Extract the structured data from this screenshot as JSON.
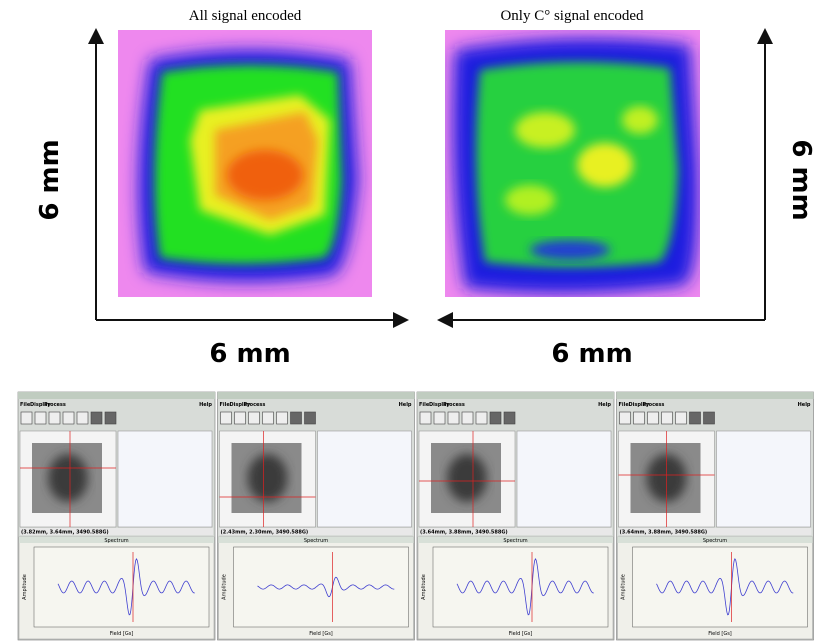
{
  "maps": [
    {
      "title": "All signal encoded",
      "x_label": "6 mm",
      "y_label": "6 mm"
    },
    {
      "title": "Only C° signal encoded",
      "x_label": "6 mm",
      "y_label": "6 mm"
    }
  ],
  "menu": [
    "File",
    "Display",
    "Process",
    "Help"
  ],
  "spectrum": {
    "title": "Spectrum",
    "y_label": "Amplitude",
    "x_label": "Field [Gs]"
  },
  "windows": [
    {
      "status": "(3.82mm, 3.64mm, 3490.588G)"
    },
    {
      "status": "(2.43mm, 2.30mm, 3490.588G)"
    },
    {
      "status": "(3.64mm, 3.88mm, 3490.588G)"
    },
    {
      "status": "(3.64mm, 3.88mm, 3490.588G)"
    }
  ]
}
